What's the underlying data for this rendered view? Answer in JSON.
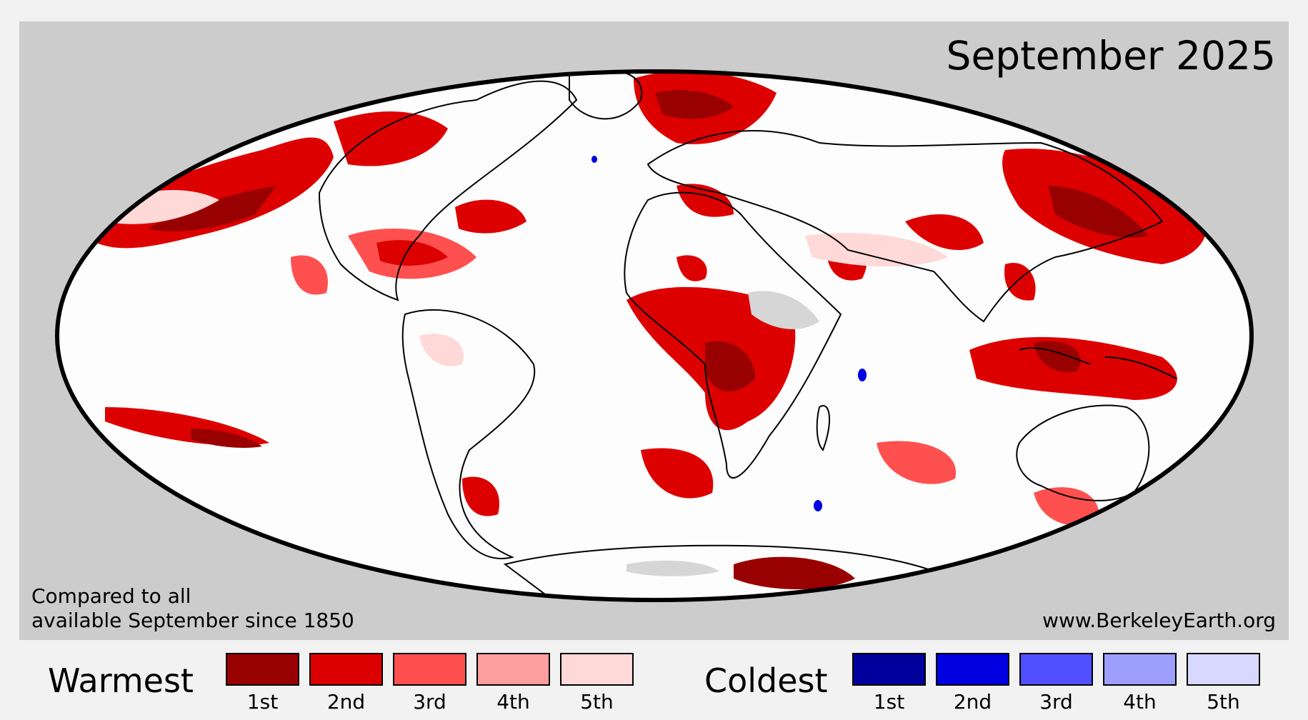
{
  "map": {
    "title": "September 2025",
    "note_line1": "Compared to all",
    "note_line2": "available September since 1850",
    "website": "www.BerkeleyEarth.org",
    "projection": "Mollweide",
    "no_data_color": "#d6d6d6"
  },
  "legend": {
    "warmest": {
      "heading": "Warmest",
      "items": [
        {
          "rank": "1st",
          "color": "#990000"
        },
        {
          "rank": "2nd",
          "color": "#dd0000"
        },
        {
          "rank": "3rd",
          "color": "#ff5050"
        },
        {
          "rank": "4th",
          "color": "#ff9e9e"
        },
        {
          "rank": "5th",
          "color": "#ffd8d8"
        }
      ]
    },
    "coldest": {
      "heading": "Coldest",
      "items": [
        {
          "rank": "1st",
          "color": "#00009c"
        },
        {
          "rank": "2nd",
          "color": "#0000e0"
        },
        {
          "rank": "3rd",
          "color": "#5050ff"
        },
        {
          "rank": "4th",
          "color": "#9e9eff"
        },
        {
          "rank": "5th",
          "color": "#d8d8ff"
        }
      ]
    }
  }
}
